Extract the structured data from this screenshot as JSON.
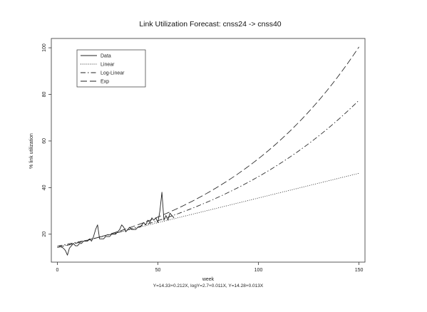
{
  "chart_data": {
    "type": "line",
    "title": "Link Utilization Forecast: cnss24 -> cnss40",
    "xlabel": "week",
    "ylabel": "% link utilization",
    "caption": "Y=14.33+0.212X, logY=2.7+0.011X, Y=14.28+0.013X",
    "xlim": [
      -3,
      153
    ],
    "ylim": [
      8,
      104
    ],
    "x_ticks": [
      0,
      50,
      100,
      150
    ],
    "y_ticks": [
      20,
      40,
      60,
      80,
      100
    ],
    "grid": false,
    "legend_position": "top-left",
    "legend": [
      {
        "name": "Data",
        "style": "solid"
      },
      {
        "name": "Linear",
        "style": "dotted"
      },
      {
        "name": "Log-Linear",
        "style": "dashdot"
      },
      {
        "name": "Exp",
        "style": "longdash"
      }
    ],
    "series": [
      {
        "name": "Data",
        "style": "solid",
        "x": [
          1,
          3,
          4,
          5,
          6,
          7,
          8,
          9,
          10,
          11,
          12,
          13,
          14,
          15,
          16,
          17,
          18,
          19,
          20,
          21,
          22,
          23,
          24,
          25,
          26,
          27,
          28,
          29,
          30,
          31,
          32,
          33,
          34,
          35,
          36,
          37,
          38,
          39,
          40,
          41,
          42,
          43,
          44,
          45,
          46,
          47,
          48,
          49,
          50,
          51,
          52,
          53,
          54,
          55,
          56,
          57,
          58
        ],
        "y": [
          15,
          14,
          13,
          11,
          14,
          15,
          16,
          15,
          15,
          16,
          16,
          17,
          17,
          17,
          18,
          17,
          19,
          22,
          24,
          18,
          18,
          18,
          19,
          19,
          19,
          20,
          20,
          20,
          21,
          22,
          24,
          23,
          21,
          22,
          23,
          22,
          22,
          22,
          23,
          23,
          24,
          25,
          24,
          26,
          25,
          27,
          26,
          27,
          25,
          30,
          38,
          26,
          28,
          26,
          29,
          28,
          27
        ]
      },
      {
        "name": "Linear",
        "style": "dotted",
        "intercept": 14.33,
        "slope": 0.212
      },
      {
        "name": "Log-Linear",
        "style": "dashdot",
        "log_intercept": 2.7,
        "log_slope": 0.011
      },
      {
        "name": "Exp",
        "style": "longdash",
        "base": 14.28,
        "rate": 0.013
      }
    ]
  }
}
